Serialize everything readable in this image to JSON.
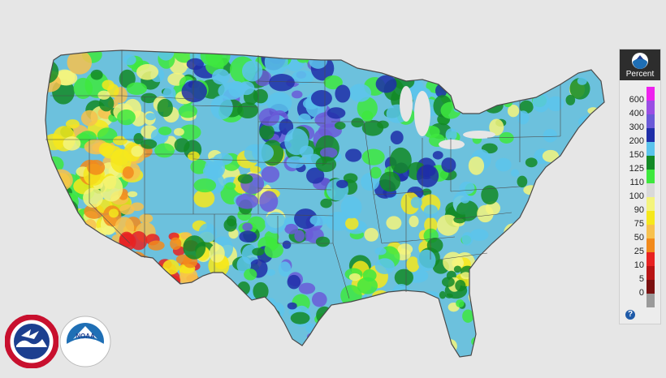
{
  "map": {
    "colors": {
      "background": "#e6e6e6",
      "land_base": "#6cc1dd",
      "state_lines": "#4a4a4a"
    }
  },
  "legend": {
    "title": "Percent",
    "help_symbol": "?",
    "items": [
      {
        "label": "600",
        "color": "#ee22ee"
      },
      {
        "label": "400",
        "color": "#9a4ee4"
      },
      {
        "label": "300",
        "color": "#6a5ad8"
      },
      {
        "label": "200",
        "color": "#1e2ea8"
      },
      {
        "label": "150",
        "color": "#5cc4ec"
      },
      {
        "label": "125",
        "color": "#138a26"
      },
      {
        "label": "110",
        "color": "#3ee83e"
      },
      {
        "label": "100",
        "color": "#d9d9d9"
      },
      {
        "label": "90",
        "color": "#f4f47c"
      },
      {
        "label": "75",
        "color": "#f6e81c"
      },
      {
        "label": "50",
        "color": "#f7c14e"
      },
      {
        "label": "25",
        "color": "#f28a1c"
      },
      {
        "label": "10",
        "color": "#e82222"
      },
      {
        "label": "5",
        "color": "#b81414"
      },
      {
        "label": "0",
        "color": "#7a1010"
      },
      {
        "label": "",
        "color": "#9a9a9a"
      }
    ]
  },
  "logos": {
    "nws_text": "NATIONAL WEATHER SERVICE",
    "noaa_text": "NOAA",
    "noaa_ring_text": "NATIONAL OCEANIC AND ATMOSPHERIC ADMINISTRATION · U.S. DEPARTMENT OF COMMERCE",
    "nws_color": "#1c3f8f",
    "nws_ring_color": "#c8102e",
    "noaa_color": "#1f6fb5"
  }
}
